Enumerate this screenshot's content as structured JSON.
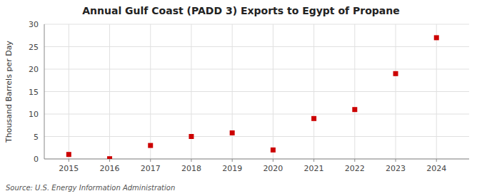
{
  "chart_data": {
    "type": "scatter",
    "title": "Annual Gulf Coast (PADD 3) Exports to Egypt of Propane",
    "y_label": "Thousand Barrels per Day",
    "source": "Source: U.S. Energy Information Administration",
    "x": [
      2015,
      2016,
      2017,
      2018,
      2019,
      2020,
      2021,
      2022,
      2023,
      2024
    ],
    "values": [
      1.0,
      0.05,
      3.0,
      5.0,
      5.8,
      2.0,
      9.0,
      11.0,
      19.0,
      27.0
    ],
    "color": "#cc0000",
    "marker": "square",
    "xlim": [
      2014.4,
      2024.8
    ],
    "xticks": [
      2015,
      2016,
      2017,
      2018,
      2019,
      2020,
      2021,
      2022,
      2023,
      2024
    ],
    "ylim": [
      0,
      30
    ],
    "yticks": [
      0,
      5,
      10,
      15,
      20,
      25,
      30
    ],
    "grid": true
  }
}
